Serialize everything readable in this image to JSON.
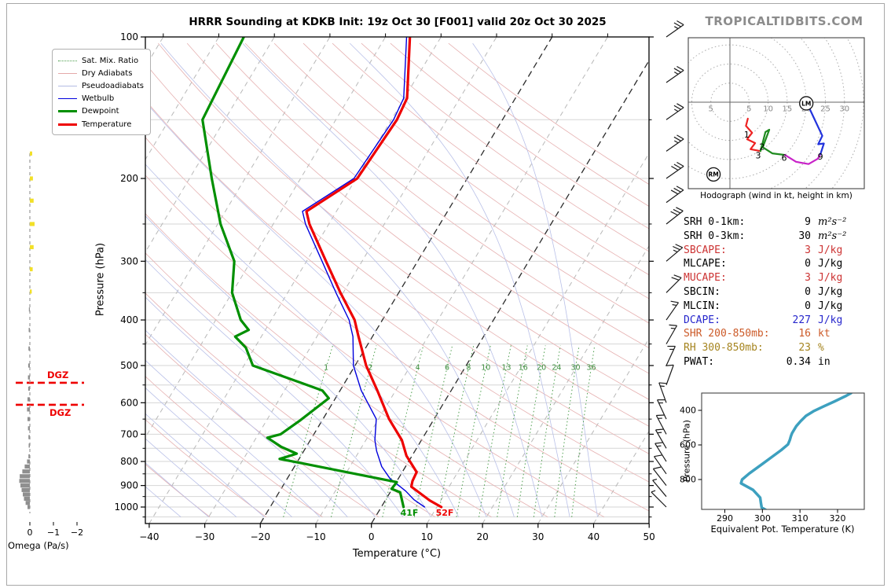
{
  "header": {
    "title": "HRRR Sounding at KDKB Init: 19z Oct 30 [F001] valid 20z Oct 30 2025",
    "watermark": "TROPICALTIDBITS.COM"
  },
  "legend": {
    "items": [
      {
        "label": "Sat. Mix. Ratio"
      },
      {
        "label": "Dry Adiabats"
      },
      {
        "label": "Pseudoadiabats"
      },
      {
        "label": "Wetbulb"
      },
      {
        "label": "Dewpoint"
      },
      {
        "label": "Temperature"
      }
    ]
  },
  "skewt": {
    "x_axis": {
      "label": "Temperature (°C)",
      "ticks": [
        -40,
        -30,
        -20,
        -10,
        0,
        10,
        20,
        30,
        40,
        50
      ]
    },
    "y_axis": {
      "label": "Pressure (hPa)",
      "ticks": [
        100,
        200,
        300,
        400,
        500,
        600,
        700,
        800,
        900,
        1000
      ]
    },
    "mixing_ratio_values": [
      1,
      2,
      4,
      6,
      8,
      10,
      13,
      16,
      20,
      24,
      30,
      36
    ],
    "surface_temp_label": "52F",
    "surface_dewp_label": "41F",
    "dgz": {
      "label": "DGZ",
      "pressures": [
        544,
        606
      ]
    },
    "colors": {
      "temperature": "#ee0000",
      "dewpoint": "#008f00",
      "wetbulb": "#0000dd",
      "dry_adiabat": "#e6b1b1",
      "pseudoadiabat": "#b9c0e8",
      "mixing_ratio": "#4d9e4d",
      "isotherm": "#b8b8b8",
      "isotherm_highlight": "#2b2b2b",
      "grid": "#d6d6d6",
      "dgz": "#ee0000",
      "omega_down": "#8f8f8f",
      "omega_up": "#f2e028",
      "barb": "#1a1a1a"
    }
  },
  "omega": {
    "label": "Omega (Pa/s)",
    "tick_labels": [
      "0",
      "−1",
      "−2"
    ],
    "tick_values": [
      0,
      -1,
      -2
    ]
  },
  "wind_barbs": [
    [
      100,
      25,
      35
    ],
    [
      125,
      25,
      35
    ],
    [
      150,
      25,
      35
    ],
    [
      175,
      25,
      35
    ],
    [
      200,
      30,
      35
    ],
    [
      225,
      30,
      36
    ],
    [
      250,
      30,
      38
    ],
    [
      300,
      25,
      40
    ],
    [
      350,
      20,
      45
    ],
    [
      400,
      15,
      55
    ],
    [
      450,
      15,
      60
    ],
    [
      500,
      15,
      65
    ],
    [
      550,
      10,
      70
    ],
    [
      600,
      15,
      110
    ],
    [
      650,
      15,
      115
    ],
    [
      700,
      15,
      118
    ],
    [
      750,
      15,
      120
    ],
    [
      800,
      15,
      122
    ],
    [
      850,
      10,
      125
    ],
    [
      900,
      10,
      128
    ],
    [
      950,
      5,
      130
    ],
    [
      1000,
      5,
      135
    ]
  ],
  "hodograph": {
    "caption": "Hodograph (wind in kt, height in km)",
    "ring_radii_kt": [
      5,
      10,
      15,
      20,
      25,
      30,
      35
    ],
    "axis_labels": [
      {
        "text": "5",
        "u": -5
      },
      {
        "text": "5",
        "u": 5
      },
      {
        "text": "10",
        "u": 10
      },
      {
        "text": "15",
        "u": 15
      },
      {
        "text": "20",
        "u": 20
      },
      {
        "text": "25",
        "u": 25
      },
      {
        "text": "30",
        "u": 30
      }
    ],
    "height_labels": [
      {
        "text": "1",
        "u": 4.4,
        "v": -8.4
      },
      {
        "text": "2",
        "u": 8.4,
        "v": -11.6
      },
      {
        "text": "3",
        "u": 7.4,
        "v": -13.9
      },
      {
        "text": "6",
        "u": 14.2,
        "v": -14.5
      },
      {
        "text": "9",
        "u": 23.7,
        "v": -14.2
      }
    ],
    "storm_motion": [
      {
        "text": "LM",
        "u": 20.0,
        "v": -0.3
      },
      {
        "text": "RM",
        "u": -4.3,
        "v": -18.9
      }
    ]
  },
  "indices": {
    "rows": [
      {
        "label": "SRH 0-1km:",
        "value": "9",
        "unit": "m²s⁻²",
        "color": "#000000",
        "math": true
      },
      {
        "label": "SRH 0-3km:",
        "value": "30",
        "unit": "m²s⁻²",
        "color": "#000000",
        "math": true
      },
      {
        "label": "SBCAPE:",
        "value": "3",
        "unit": "J/kg",
        "color": "#cc3333",
        "math": false
      },
      {
        "label": "MLCAPE:",
        "value": "0",
        "unit": "J/kg",
        "color": "#000000",
        "math": false
      },
      {
        "label": "MUCAPE:",
        "value": "3",
        "unit": "J/kg",
        "color": "#cc3333",
        "math": false
      },
      {
        "label": "SBCIN:",
        "value": "0",
        "unit": "J/kg",
        "color": "#000000",
        "math": false
      },
      {
        "label": "MLCIN:",
        "value": "0",
        "unit": "J/kg",
        "color": "#000000",
        "math": false
      },
      {
        "label": "DCAPE:",
        "value": "227",
        "unit": "J/kg",
        "color": "#2626cc",
        "math": false
      },
      {
        "label": "SHR 200-850mb:",
        "value": "16",
        "unit": "kt",
        "color": "#cc5a28",
        "math": false
      },
      {
        "label": "RH 300-850mb:",
        "value": "23",
        "unit": "%",
        "color": "#a5841f",
        "math": false
      },
      {
        "label": "PWAT:",
        "value": "0.34",
        "unit": "in",
        "color": "#000000",
        "math": false
      }
    ]
  },
  "theta_e_panel": {
    "xlabel": "Equivalent Pot. Temperature (K)",
    "ylabel": "Pressure (hPa)",
    "x_ticks": [
      290,
      300,
      310,
      320
    ],
    "y_ticks": [
      400,
      600,
      800
    ],
    "curve_color": "#3da0bf"
  },
  "chart_data": [
    {
      "type": "line",
      "name": "skewt_sounding",
      "title": "HRRR Sounding at KDKB Init: 19z Oct 30 [F001] valid 20z Oct 30 2025",
      "xlabel": "Temperature (°C)",
      "ylabel": "Pressure (hPa)",
      "xlim": [
        -40,
        50
      ],
      "pressure_range": [
        100,
        1050
      ],
      "series": [
        {
          "name": "temperature",
          "units": "P_hPa,T_C",
          "points": [
            [
              100,
              -45.6
            ],
            [
              135,
              -39.5
            ],
            [
              150,
              -39.0
            ],
            [
              200,
              -39.8
            ],
            [
              235,
              -45.4
            ],
            [
              250,
              -43.5
            ],
            [
              300,
              -36.5
            ],
            [
              350,
              -30.5
            ],
            [
              400,
              -25.0
            ],
            [
              434,
              -22.5
            ],
            [
              500,
              -18.0
            ],
            [
              565,
              -13.3
            ],
            [
              650,
              -8.1
            ],
            [
              721,
              -3.5
            ],
            [
              778,
              -1.0
            ],
            [
              843,
              2.6
            ],
            [
              880,
              2.8
            ],
            [
              905,
              3.2
            ],
            [
              968,
              8.0
            ],
            [
              1000,
              10.8
            ]
          ]
        },
        {
          "name": "dewpoint",
          "units": "P_hPa,T_C",
          "points": [
            [
              100,
              -75.5
            ],
            [
              150,
              -74.0
            ],
            [
              200,
              -66.0
            ],
            [
              250,
              -59.5
            ],
            [
              300,
              -53.0
            ],
            [
              350,
              -50.0
            ],
            [
              400,
              -45.5
            ],
            [
              420,
              -43.0
            ],
            [
              434,
              -44.7
            ],
            [
              458,
              -41.6
            ],
            [
              500,
              -38.4
            ],
            [
              565,
              -23.2
            ],
            [
              587,
              -21.2
            ],
            [
              655,
              -24.0
            ],
            [
              700,
              -26.0
            ],
            [
              712,
              -28.0
            ],
            [
              745,
              -24.5
            ],
            [
              770,
              -21.0
            ],
            [
              790,
              -23.5
            ],
            [
              805,
              -19.5
            ],
            [
              885,
              0.1
            ],
            [
              915,
              -0.1
            ],
            [
              930,
              1.8
            ],
            [
              1000,
              4.0
            ]
          ]
        },
        {
          "name": "wetbulb",
          "units": "P_hPa,T_C",
          "points": [
            [
              100,
              -46.2
            ],
            [
              135,
              -40.1
            ],
            [
              150,
              -39.6
            ],
            [
              200,
              -40.4
            ],
            [
              235,
              -46.1
            ],
            [
              250,
              -44.2
            ],
            [
              300,
              -37.2
            ],
            [
              350,
              -31.3
            ],
            [
              400,
              -26.0
            ],
            [
              434,
              -23.5
            ],
            [
              500,
              -20.3
            ],
            [
              565,
              -16.2
            ],
            [
              650,
              -10.4
            ],
            [
              720,
              -8.4
            ],
            [
              760,
              -6.9
            ],
            [
              820,
              -4.3
            ],
            [
              870,
              -1.5
            ],
            [
              925,
              2.7
            ],
            [
              965,
              5.1
            ],
            [
              1000,
              7.8
            ]
          ]
        }
      ]
    },
    {
      "type": "line",
      "name": "hodograph",
      "units": "u_kt,v_kt",
      "segments": [
        {
          "name": "0-3km",
          "color": "#ee2222",
          "points": [
            [
              4.7,
              -4.3
            ],
            [
              4.2,
              -6.2
            ],
            [
              5.8,
              -8.0
            ],
            [
              4.5,
              -9.7
            ],
            [
              6.6,
              -10.7
            ],
            [
              5.4,
              -12.3
            ],
            [
              8.0,
              -12.8
            ]
          ]
        },
        {
          "name": "3-6km",
          "color": "#1f8b1f",
          "points": [
            [
              8.0,
              -12.8
            ],
            [
              9.3,
              -7.8
            ],
            [
              10.3,
              -7.2
            ],
            [
              8.6,
              -11.8
            ],
            [
              11.1,
              -13.4
            ],
            [
              14.4,
              -13.8
            ]
          ]
        },
        {
          "name": "6-9km",
          "color": "#c823c8",
          "points": [
            [
              14.4,
              -13.8
            ],
            [
              17.3,
              -15.6
            ],
            [
              20.6,
              -16.2
            ],
            [
              23.0,
              -14.8
            ],
            [
              23.7,
              -13.6
            ]
          ]
        },
        {
          "name": "9km+",
          "color": "#2233dd",
          "points": [
            [
              23.7,
              -13.6
            ],
            [
              24.6,
              -10.8
            ],
            [
              23.1,
              -11.0
            ],
            [
              24.2,
              -8.8
            ],
            [
              21.9,
              -3.9
            ],
            [
              20.9,
              -1.8
            ]
          ]
        }
      ]
    },
    {
      "type": "line",
      "name": "equivalent_potential_temperature",
      "xlabel": "Equivalent Pot. Temperature (K)",
      "ylabel": "Pressure (hPa)",
      "points": [
        [
          302,
          1000
        ],
        [
          301.5,
          983
        ],
        [
          299.8,
          962
        ],
        [
          299.6,
          935
        ],
        [
          299.4,
          905
        ],
        [
          297.5,
          860
        ],
        [
          294.3,
          822
        ],
        [
          294.6,
          800
        ],
        [
          296.5,
          765
        ],
        [
          300,
          710
        ],
        [
          302.6,
          668
        ],
        [
          305,
          630
        ],
        [
          306.8,
          597
        ],
        [
          307.3,
          572
        ],
        [
          307.6,
          548
        ],
        [
          307.9,
          532
        ],
        [
          309,
          492
        ],
        [
          310.2,
          462
        ],
        [
          311.6,
          432
        ],
        [
          313.6,
          405
        ],
        [
          316.2,
          378
        ],
        [
          319.2,
          348
        ],
        [
          322.3,
          316
        ],
        [
          323.6,
          300
        ]
      ]
    },
    {
      "type": "bar",
      "name": "omega",
      "xlabel": "Omega (Pa/s)",
      "units": "P_hPa,omega_Pa_per_s",
      "bars": [
        [
          177,
          -0.1
        ],
        [
          200,
          -0.13
        ],
        [
          223,
          -0.16
        ],
        [
          250,
          -0.2
        ],
        [
          280,
          -0.16
        ],
        [
          312,
          -0.12
        ],
        [
          348,
          -0.08
        ],
        [
          380,
          0.04
        ],
        [
          420,
          0.05
        ],
        [
          460,
          0.06
        ],
        [
          500,
          0.07
        ],
        [
          530,
          0.08
        ],
        [
          560,
          0.07
        ],
        [
          590,
          0.1
        ],
        [
          620,
          0.12
        ],
        [
          650,
          0.1
        ],
        [
          680,
          0.08
        ],
        [
          710,
          0.06
        ],
        [
          740,
          0.05
        ],
        [
          780,
          0.06
        ],
        [
          800,
          0.12
        ],
        [
          820,
          0.22
        ],
        [
          840,
          0.32
        ],
        [
          860,
          0.43
        ],
        [
          880,
          0.45
        ],
        [
          900,
          0.4
        ],
        [
          920,
          0.35
        ],
        [
          940,
          0.3
        ],
        [
          960,
          0.25
        ],
        [
          980,
          0.18
        ],
        [
          1000,
          0.1
        ]
      ]
    }
  ]
}
